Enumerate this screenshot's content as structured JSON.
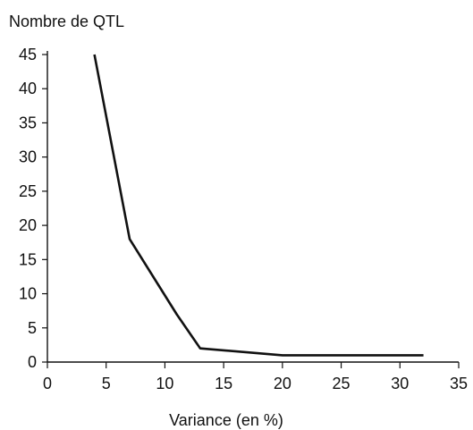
{
  "chart_data": {
    "type": "line",
    "title": "",
    "xlabel": "Variance (en %)",
    "ylabel": "Nombre de QTL",
    "xlim": [
      0,
      35
    ],
    "ylim": [
      0,
      45
    ],
    "xticks": [
      0,
      5,
      10,
      15,
      20,
      25,
      30,
      35
    ],
    "yticks": [
      0,
      5,
      10,
      15,
      20,
      25,
      30,
      35,
      40,
      45
    ],
    "xtick_labels": [
      "0",
      "5",
      "10",
      "15",
      "20",
      "25",
      "30",
      "35"
    ],
    "ytick_labels": [
      "0",
      "5",
      "10",
      "15",
      "20",
      "25",
      "30",
      "35",
      "40",
      "45"
    ],
    "grid": false,
    "legend": "none",
    "series": [
      {
        "color": "#111111",
        "x": [
          4,
          7,
          11,
          13,
          20,
          32
        ],
        "y": [
          45,
          18,
          7,
          2,
          1,
          1
        ]
      }
    ]
  }
}
